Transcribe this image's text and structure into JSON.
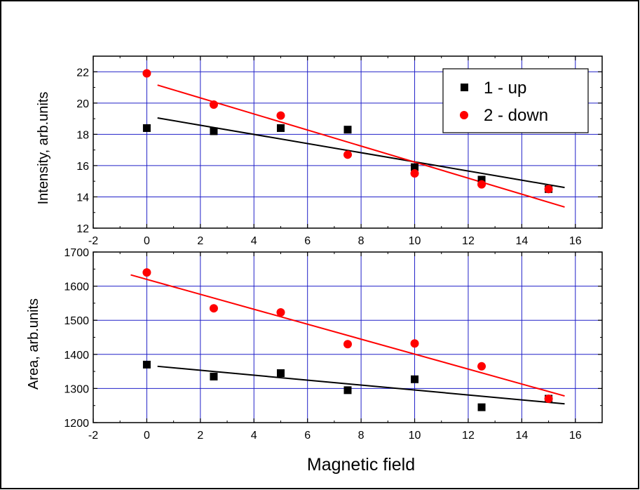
{
  "chart_data": [
    {
      "type": "scatter",
      "title": "",
      "xlabel": "",
      "ylabel": "Intensity, arb.units",
      "xlim": [
        -2,
        17
      ],
      "ylim": [
        12,
        23
      ],
      "xticks": [
        -2,
        0,
        2,
        4,
        6,
        8,
        10,
        12,
        14,
        16
      ],
      "yticks": [
        12,
        14,
        16,
        18,
        20,
        22
      ],
      "grid": true,
      "legend_position": "top-right",
      "series": [
        {
          "name": "1 - up",
          "marker": "square",
          "color": "#000000",
          "x": [
            0,
            2.5,
            5,
            7.5,
            10,
            12.5,
            15
          ],
          "y": [
            18.4,
            18.2,
            18.4,
            18.3,
            15.9,
            15.1,
            14.5
          ],
          "fit": {
            "x": [
              0.4,
              15.6
            ],
            "y": [
              19.05,
              14.6
            ]
          }
        },
        {
          "name": "2 - down",
          "marker": "circle",
          "color": "#ff0000",
          "x": [
            0,
            2.5,
            5,
            7.5,
            10,
            12.5,
            15
          ],
          "y": [
            21.9,
            19.9,
            19.2,
            16.7,
            15.5,
            14.8,
            14.5
          ],
          "fit": {
            "x": [
              0.4,
              15.6
            ],
            "y": [
              21.15,
              13.35
            ]
          }
        }
      ]
    },
    {
      "type": "scatter",
      "title": "",
      "xlabel": "Magnetic field",
      "ylabel": "Area, arb.units",
      "xlim": [
        -2,
        17
      ],
      "ylim": [
        1200,
        1700
      ],
      "xticks": [
        -2,
        0,
        2,
        4,
        6,
        8,
        10,
        12,
        14,
        16
      ],
      "yticks": [
        1200,
        1300,
        1400,
        1500,
        1600,
        1700
      ],
      "grid": true,
      "series": [
        {
          "name": "1 - up",
          "marker": "square",
          "color": "#000000",
          "x": [
            0,
            2.5,
            5,
            7.5,
            10,
            12.5,
            15
          ],
          "y": [
            1370,
            1335,
            1345,
            1295,
            1327,
            1245,
            1270
          ],
          "fit": {
            "x": [
              0.4,
              15.6
            ],
            "y": [
              1365,
              1255
            ]
          }
        },
        {
          "name": "2 - down",
          "marker": "circle",
          "color": "#ff0000",
          "x": [
            0,
            2.5,
            5,
            7.5,
            10,
            12.5,
            15
          ],
          "y": [
            1640,
            1535,
            1523,
            1430,
            1432,
            1365,
            1270
          ],
          "fit": {
            "x": [
              -0.6,
              15.6
            ],
            "y": [
              1633,
              1278
            ]
          }
        }
      ]
    }
  ]
}
